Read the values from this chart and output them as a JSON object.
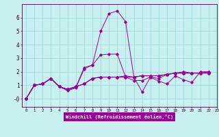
{
  "xlabel": "Windchill (Refroidissement éolien,°C)",
  "bg_color": "#c8f0f0",
  "grid_color": "#a0d8d8",
  "line_color": "#990099",
  "xlim": [
    -0.5,
    23
  ],
  "ylim": [
    -0.6,
    7.0
  ],
  "yticks": [
    0,
    1,
    2,
    3,
    4,
    5,
    6
  ],
  "ytick_labels": [
    "-0",
    "1",
    "2",
    "3",
    "4",
    "5",
    "6"
  ],
  "xticks": [
    0,
    1,
    2,
    3,
    4,
    5,
    6,
    7,
    8,
    9,
    10,
    11,
    12,
    13,
    14,
    15,
    16,
    17,
    18,
    19,
    20,
    21,
    22,
    23
  ],
  "series": [
    [
      0.0,
      1.0,
      1.1,
      1.5,
      0.9,
      0.6,
      0.8,
      2.2,
      2.5,
      5.0,
      6.3,
      6.5,
      5.7,
      1.6,
      0.5,
      1.6,
      1.3,
      1.1,
      1.7,
      1.4,
      1.2,
      2.0,
      2.0
    ],
    [
      0.0,
      1.0,
      1.1,
      1.5,
      0.9,
      0.7,
      0.9,
      1.1,
      1.5,
      1.6,
      1.6,
      1.6,
      1.6,
      1.6,
      1.7,
      1.7,
      1.7,
      1.8,
      1.9,
      1.9,
      1.9,
      1.9,
      1.9
    ],
    [
      0.0,
      1.0,
      1.1,
      1.5,
      0.9,
      0.7,
      0.9,
      1.1,
      1.5,
      1.6,
      1.6,
      1.6,
      1.6,
      1.6,
      1.7,
      1.7,
      1.7,
      1.8,
      1.9,
      1.9,
      1.9,
      1.9,
      1.9
    ],
    [
      0.0,
      1.0,
      1.1,
      1.5,
      0.9,
      0.7,
      0.9,
      1.1,
      1.5,
      1.6,
      1.6,
      1.6,
      1.7,
      1.6,
      1.7,
      1.7,
      1.7,
      1.8,
      1.9,
      1.9,
      1.9,
      1.9,
      1.9
    ],
    [
      0.0,
      1.0,
      1.1,
      1.5,
      0.9,
      0.65,
      0.85,
      2.3,
      2.5,
      3.25,
      3.3,
      3.3,
      1.6,
      1.35,
      1.35,
      1.6,
      1.5,
      1.8,
      1.9,
      2.0,
      1.9,
      1.9,
      2.0
    ]
  ],
  "x_values": [
    0,
    1,
    2,
    3,
    4,
    5,
    6,
    7,
    8,
    9,
    10,
    11,
    12,
    13,
    14,
    15,
    16,
    17,
    18,
    19,
    20,
    21,
    22
  ]
}
